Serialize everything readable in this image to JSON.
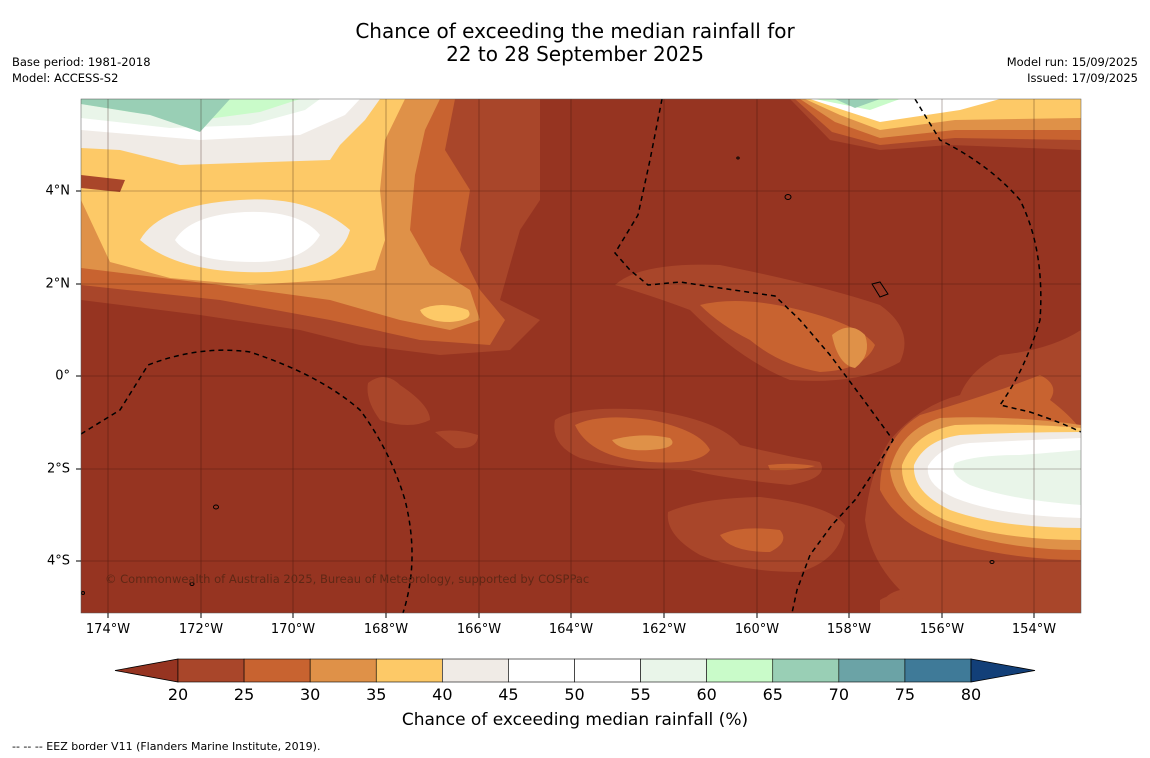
{
  "title_line1": "Chance of exceeding the median rainfall for",
  "title_line2": "22 to 28 September 2025",
  "base_period": "Base period: 1981-2018",
  "model": "Model: ACCESS-S2",
  "model_run": "Model run: 15/09/2025",
  "issued": "Issued: 17/09/2025",
  "credit": "© Commonwealth of Australia 2025, Bureau of Meteorology, supported by COSPPac",
  "colorbar_label": "Chance of exceeding median rainfall (%)",
  "footnote": "--  --  -- EEZ border V11 (Flanders Marine Institute, 2019).",
  "lon_ticks": [
    "174°W",
    "172°W",
    "170°W",
    "168°W",
    "166°W",
    "164°W",
    "162°W",
    "160°W",
    "158°W",
    "156°W",
    "154°W"
  ],
  "lat_ticks": [
    "4°N",
    "2°N",
    "0°",
    "2°S",
    "4°S"
  ],
  "colorbar": {
    "ticks": [
      "20",
      "25",
      "30",
      "35",
      "40",
      "45",
      "50",
      "55",
      "60",
      "65",
      "70",
      "75",
      "80"
    ],
    "colors": [
      "#a9462a",
      "#c86330",
      "#df9148",
      "#fdc967",
      "#f0ebe6",
      "#ffffff",
      "#ffffff",
      "#e9f5e9",
      "#c9fbc9",
      "#99cfb5",
      "#6ba3a6",
      "#3f7a98"
    ],
    "under_color": "#963421",
    "over_color": "#123f78"
  },
  "palette": {
    "p20": "#963421",
    "p25": "#a9462a",
    "p30": "#c86330",
    "p35": "#df9148",
    "p40": "#fdc967",
    "p45": "#f0ebe6",
    "p50": "#ffffff",
    "p60": "#e9f5e9",
    "p65": "#c9fbc9",
    "p70": "#99cfb5"
  }
}
